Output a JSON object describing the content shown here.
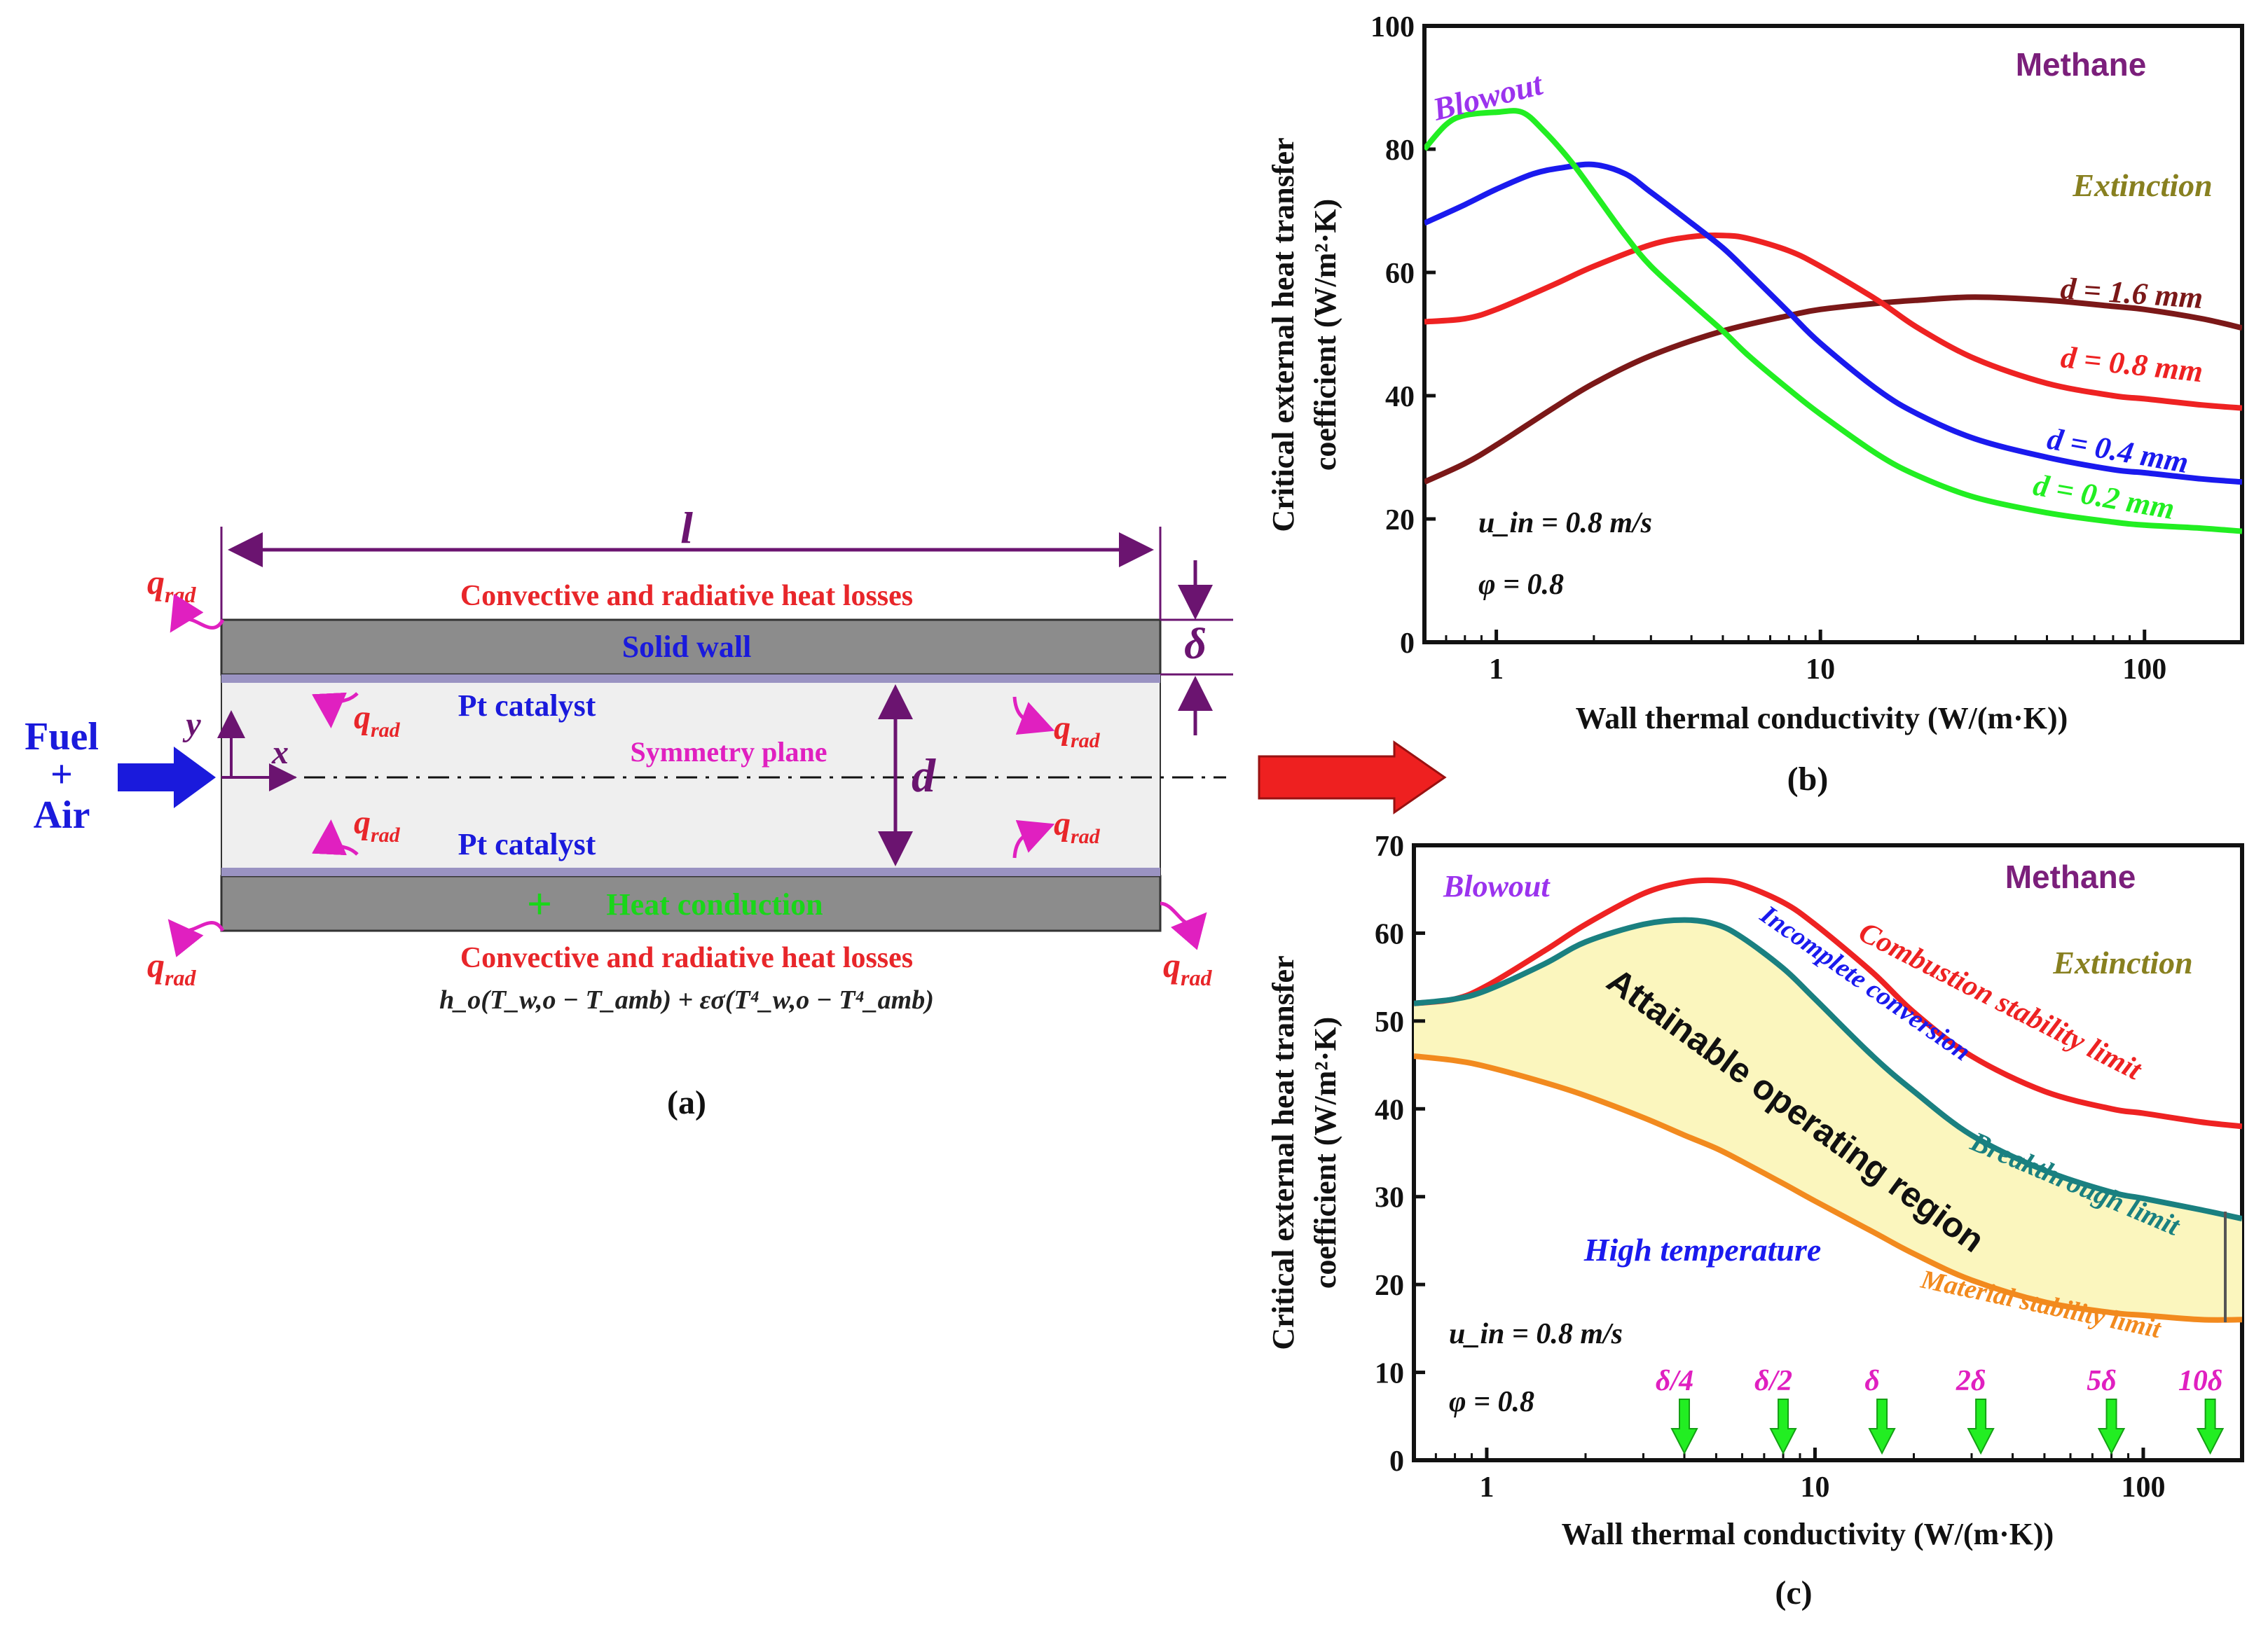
{
  "panel_a": {
    "caption": "(a)",
    "length_label": "l",
    "q_label": "q",
    "q_sub": "rad",
    "heat_loss_top": "Convective and radiative heat losses",
    "heat_loss_bottom": "Convective and radiative heat losses",
    "solid_wall": "Solid wall",
    "pt_catalyst_top": "Pt catalyst",
    "pt_catalyst_bottom": "Pt catalyst",
    "symmetry_plane": "Symmetry plane",
    "heat_conduction": "Heat conduction",
    "heat_conduction_symbol": "+",
    "fuel": "Fuel",
    "plus": "+",
    "air": "Air",
    "axis_x": "x",
    "axis_y": "y",
    "d_label": "d",
    "delta_label": "δ",
    "formula": "h_o(T_w,o − T_amb) + εσ(T⁴_w,o − T⁴_amb)",
    "colors": {
      "wall": "#8c8c8c",
      "channel": "#efefef",
      "purple": "#6b1470",
      "red": "#e8262a",
      "blue": "#1a1adc",
      "magenta": "#e020c0",
      "green": "#19d619"
    }
  },
  "chart_data": [
    {
      "panel": "(b)",
      "type": "line",
      "xscale": "log",
      "xlim": [
        0.6,
        200
      ],
      "ylim": [
        0,
        100
      ],
      "xticks": [
        1,
        10,
        100
      ],
      "xtick_labels": [
        "1",
        "10",
        "100"
      ],
      "yticks": [
        0,
        20,
        40,
        60,
        80,
        100
      ],
      "ytick_labels": [
        "0",
        "20",
        "40",
        "60",
        "80",
        "100"
      ],
      "xlabel": "Wall thermal conductivity (W/(m·K))",
      "ylabel_line1": "Critical external heat transfer",
      "ylabel_line2": "coefficient (W/m²·K)",
      "annotations": {
        "fuel": "Methane",
        "blowout": "Blowout",
        "extinction": "Extinction",
        "uin": "u_in = 0.8 m/s",
        "phi": "φ = 0.8"
      },
      "series": [
        {
          "name": "d = 1.6 mm",
          "color": "#7b1818",
          "x": [
            0.6,
            0.8,
            1.0,
            1.5,
            2.0,
            3.0,
            5.0,
            8.0,
            10,
            15,
            20,
            30,
            50,
            80,
            100,
            150,
            200
          ],
          "y": [
            26,
            29,
            32,
            38,
            42,
            46.5,
            50.5,
            53,
            54,
            55,
            55.5,
            56,
            55.5,
            54.5,
            54,
            52.5,
            51
          ]
        },
        {
          "name": "d = 0.8 mm",
          "color": "#ee2222",
          "x": [
            0.6,
            0.8,
            1.0,
            1.5,
            2.0,
            3.0,
            4.0,
            5.0,
            6.0,
            8.0,
            10,
            15,
            20,
            30,
            50,
            80,
            100,
            150,
            200
          ],
          "y": [
            52,
            52.5,
            54,
            58,
            61,
            64.5,
            65.8,
            66,
            65.5,
            63.5,
            61,
            55.5,
            51,
            46,
            42,
            40,
            39.5,
            38.5,
            38
          ]
        },
        {
          "name": "d = 0.4 mm",
          "color": "#1a1aee",
          "x": [
            0.6,
            0.8,
            1.0,
            1.3,
            1.6,
            2.0,
            2.5,
            3.0,
            4.0,
            5.0,
            6.0,
            8.0,
            10,
            15,
            20,
            30,
            50,
            80,
            100,
            150,
            200
          ],
          "y": [
            68,
            71,
            73.5,
            76,
            77,
            77.5,
            76,
            73,
            68,
            64,
            60,
            53.5,
            48.5,
            41,
            37,
            33,
            30,
            28,
            27.5,
            26.5,
            26
          ]
        },
        {
          "name": "d = 0.2 mm",
          "color": "#22ee22",
          "x": [
            0.6,
            0.7,
            0.8,
            1.0,
            1.2,
            1.4,
            1.7,
            2.0,
            2.5,
            3.0,
            4.0,
            5.0,
            6.0,
            8.0,
            10,
            15,
            20,
            30,
            50,
            80,
            100,
            150,
            200
          ],
          "y": [
            80,
            84,
            85.5,
            86,
            86,
            83,
            78,
            73,
            66,
            61,
            55,
            50.5,
            46.5,
            41,
            37,
            30.5,
            27,
            23.5,
            21,
            19.5,
            19,
            18.5,
            18
          ]
        }
      ],
      "legend": [
        "d = 1.6 mm",
        "d = 0.8 mm",
        "d = 0.4 mm",
        "d = 0.2 mm"
      ]
    },
    {
      "panel": "(c)",
      "type": "area",
      "xscale": "log",
      "xlim": [
        0.6,
        200
      ],
      "ylim": [
        0,
        70
      ],
      "xticks": [
        1,
        10,
        100
      ],
      "xtick_labels": [
        "1",
        "10",
        "100"
      ],
      "yticks": [
        0,
        10,
        20,
        30,
        40,
        50,
        60,
        70
      ],
      "ytick_labels": [
        "0",
        "10",
        "20",
        "30",
        "40",
        "50",
        "60",
        "70"
      ],
      "xlabel": "Wall thermal conductivity (W/(m·K))",
      "ylabel_line1": "Critical external heat transfer",
      "ylabel_line2": "coefficient (W/m²·K)",
      "annotations": {
        "fuel": "Methane",
        "blowout": "Blowout",
        "extinction": "Extinction",
        "region": "Attainable operating region",
        "high_temp": "High temperature",
        "uin": "u_in = 0.8 m/s",
        "phi": "φ = 0.8"
      },
      "series": [
        {
          "name": "Combustion stability limit",
          "color": "#ee2222",
          "x": [
            0.6,
            0.8,
            1.0,
            1.5,
            2.0,
            3.0,
            4.0,
            5.0,
            6.0,
            8.0,
            10,
            15,
            20,
            30,
            50,
            80,
            100,
            150,
            200
          ],
          "y": [
            52,
            52.5,
            54,
            58,
            61,
            64.5,
            65.8,
            66,
            65.5,
            63.5,
            61,
            55.5,
            51,
            46,
            42,
            40,
            39.5,
            38.5,
            38
          ]
        },
        {
          "name": "Incomplete conversion",
          "color": "#1a1aee",
          "x": [],
          "y": []
        },
        {
          "name": "Breakthrough limit",
          "color": "#1a8080",
          "x": [
            0.6,
            0.8,
            1.0,
            1.5,
            2.0,
            3.0,
            4.0,
            5.0,
            6.0,
            8.0,
            10,
            15,
            20,
            30,
            50,
            80,
            100,
            150,
            200
          ],
          "y": [
            52,
            52.5,
            53.5,
            56.5,
            59,
            61,
            61.5,
            61,
            59.5,
            56,
            52.5,
            46,
            42,
            37,
            33,
            30.5,
            29.8,
            28.5,
            27.5
          ]
        },
        {
          "name": "Material stability limit",
          "color": "#f28a1e",
          "x": [
            0.6,
            0.8,
            1.0,
            1.5,
            2.0,
            3.0,
            4.0,
            5.0,
            6.0,
            8.0,
            10,
            15,
            20,
            30,
            50,
            80,
            100,
            150,
            200
          ],
          "y": [
            46,
            45.5,
            44.8,
            43,
            41.5,
            39,
            37,
            35.5,
            34,
            31.5,
            29.5,
            26,
            23.5,
            20.5,
            18,
            16.8,
            16.5,
            16,
            16
          ]
        }
      ],
      "fill_between": [
        "Breakthrough limit",
        "Material stability limit"
      ],
      "fill_color": "#fbf6be",
      "thickness_markers": {
        "labels": [
          "δ/4",
          "δ/2",
          "δ",
          "2δ",
          "5δ",
          "10δ"
        ],
        "x": [
          4,
          8,
          16,
          32,
          80,
          160
        ]
      }
    }
  ]
}
